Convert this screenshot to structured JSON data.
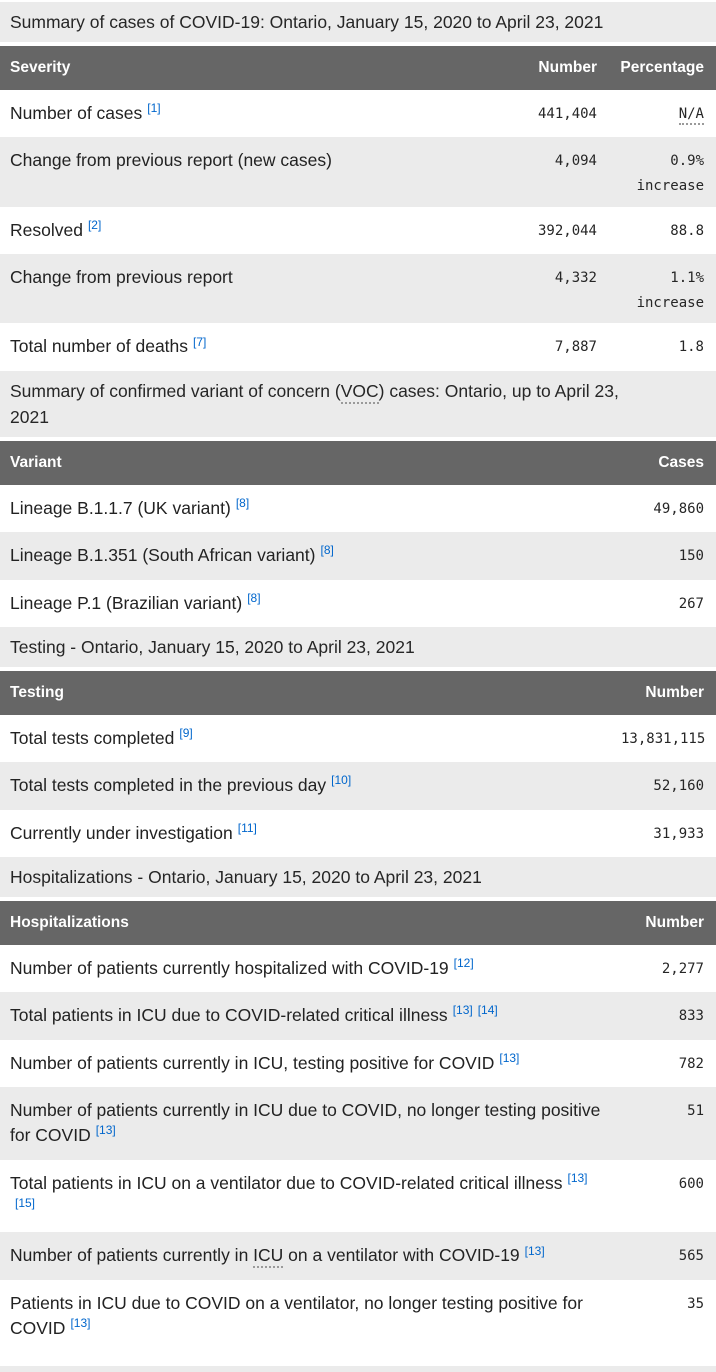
{
  "colors": {
    "header_bg": "#666666",
    "header_text": "#ffffff",
    "stripe_bg": "#ebebeb",
    "caption_bg": "#ebebeb",
    "footnote_link": "#0066cc",
    "body_text": "#222222"
  },
  "tables": [
    {
      "caption": "Summary of cases of COVID-19: Ontario, January 15, 2020 to April 23, 2021",
      "columns": [
        "Severity",
        "Number",
        "Percentage"
      ],
      "rows": [
        {
          "label": "Number of cases",
          "footnotes": [
            "[1]"
          ],
          "number": "441,404",
          "percentage": "N/A"
        },
        {
          "label": "Change from previous report (new cases)",
          "number": "4,094",
          "percentage": "0.9%",
          "percentage_note": "increase"
        },
        {
          "label": "Resolved",
          "footnotes": [
            "[2]"
          ],
          "number": "392,044",
          "percentage": "88.8"
        },
        {
          "label": "Change from previous report",
          "number": "4,332",
          "percentage": "1.1%",
          "percentage_note": "increase"
        },
        {
          "label": "Total number of deaths",
          "footnotes": [
            "[7]"
          ],
          "number": "7,887",
          "percentage": "1.8"
        }
      ]
    },
    {
      "caption_pre": "Summary of confirmed variant of concern (",
      "caption_abbr": "VOC",
      "caption_post": ") cases: Ontario, up to April 23, 2021",
      "columns": [
        "Variant",
        "Cases"
      ],
      "rows": [
        {
          "label": "Lineage B.1.1.7 (UK variant)",
          "footnotes": [
            "[8]"
          ],
          "number": "49,860"
        },
        {
          "label": "Lineage B.1.351 (South African variant)",
          "footnotes": [
            "[8]"
          ],
          "number": "150"
        },
        {
          "label": "Lineage P.1 (Brazilian variant)",
          "footnotes": [
            "[8]"
          ],
          "number": "267"
        }
      ]
    },
    {
      "caption": "Testing - Ontario, January 15, 2020 to April 23, 2021",
      "columns": [
        "Testing",
        "Number"
      ],
      "rows": [
        {
          "label": "Total tests completed",
          "footnotes": [
            "[9]"
          ],
          "number": "13,831,115"
        },
        {
          "label": "Total tests completed in the previous day",
          "footnotes": [
            "[10]"
          ],
          "number": "52,160"
        },
        {
          "label": "Currently under investigation",
          "footnotes": [
            "[11]"
          ],
          "number": "31,933"
        }
      ]
    },
    {
      "caption": "Hospitalizations - Ontario, January 15, 2020 to April 23, 2021",
      "columns": [
        "Hospitalizations",
        "Number"
      ],
      "rows": [
        {
          "label": "Number of patients currently hospitalized with COVID-19",
          "footnotes": [
            "[12]"
          ],
          "number": "2,277"
        },
        {
          "label": "Total patients in ICU due to COVID-related critical illness",
          "footnotes": [
            "[13]",
            "[14]"
          ],
          "number": "833"
        },
        {
          "label": "Number of patients currently in ICU, testing positive for COVID",
          "footnotes": [
            "[13]"
          ],
          "number": "782"
        },
        {
          "label": "Number of patients currently in ICU due to COVID, no longer testing positive for COVID",
          "footnotes": [
            "[13]"
          ],
          "number": "51"
        },
        {
          "label": "Total patients in ICU on a ventilator due to COVID-related critical illness",
          "footnotes": [
            "[13]",
            "[15]"
          ],
          "number": "600"
        },
        {
          "label_pre": "Number of patients currently in ",
          "label_abbr": "ICU",
          "label_post": " on a ventilator with COVID-19",
          "footnotes": [
            "[13]"
          ],
          "number": "565"
        },
        {
          "label": "Patients in ICU due to COVID on a ventilator, no longer testing positive for COVID",
          "footnotes": [
            "[13]"
          ],
          "number": "35"
        }
      ]
    }
  ]
}
